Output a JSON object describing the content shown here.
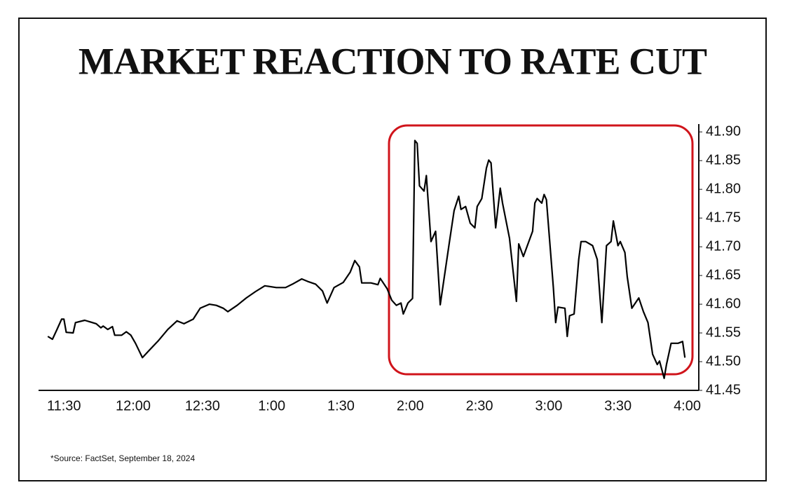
{
  "chart_data": {
    "type": "line",
    "title": "MARKET REACTION TO RATE CUT",
    "source": "*Source: FactSet, September 18, 2024",
    "x": [
      683,
      685,
      687,
      689,
      690,
      691,
      694,
      695,
      699,
      704,
      706,
      707,
      709,
      711,
      712,
      715,
      717,
      719,
      721,
      724,
      727,
      731,
      735,
      739,
      742,
      746,
      749,
      753,
      756,
      759,
      761,
      765,
      769,
      773,
      777,
      782,
      786,
      789,
      793,
      796,
      799,
      802,
      804,
      807,
      811,
      814,
      816,
      818,
      819,
      823,
      826,
      827,
      830,
      832,
      834,
      836,
      837,
      839,
      841,
      842,
      843,
      844,
      846,
      847,
      849,
      851,
      853,
      855,
      857,
      859,
      861,
      862,
      864,
      866,
      868,
      869,
      871,
      873,
      874,
      875,
      877,
      879,
      880,
      883,
      886,
      887,
      889,
      891,
      893,
      894,
      895,
      897,
      898,
      899,
      902,
      903,
      904,
      907,
      908,
      909,
      911,
      913,
      914,
      916,
      919,
      921,
      923,
      925,
      927,
      928,
      930,
      931,
      933,
      934,
      936,
      939,
      941,
      943,
      945,
      947,
      948,
      950,
      951,
      953,
      956,
      958,
      959
    ],
    "values": [
      41.544,
      41.539,
      41.556,
      41.574,
      41.574,
      41.551,
      41.55,
      41.568,
      41.572,
      41.566,
      41.559,
      41.562,
      41.556,
      41.561,
      41.546,
      41.546,
      41.552,
      41.546,
      41.532,
      41.507,
      41.52,
      41.537,
      41.556,
      41.571,
      41.566,
      41.574,
      41.593,
      41.6,
      41.598,
      41.593,
      41.587,
      41.598,
      41.611,
      41.622,
      41.632,
      41.629,
      41.629,
      41.635,
      41.644,
      41.639,
      41.635,
      41.623,
      41.602,
      41.629,
      41.638,
      41.656,
      41.676,
      41.665,
      41.637,
      41.637,
      41.634,
      41.645,
      41.627,
      41.607,
      41.598,
      41.602,
      41.583,
      41.602,
      41.61,
      41.885,
      41.88,
      41.806,
      41.797,
      41.824,
      41.709,
      41.727,
      41.599,
      41.654,
      41.709,
      41.763,
      41.788,
      41.765,
      41.77,
      41.741,
      41.733,
      41.77,
      41.784,
      41.837,
      41.851,
      41.846,
      41.733,
      41.802,
      41.776,
      41.715,
      41.605,
      41.705,
      41.683,
      41.705,
      41.727,
      41.776,
      41.784,
      41.776,
      41.791,
      41.782,
      41.629,
      41.568,
      41.595,
      41.593,
      41.544,
      41.58,
      41.583,
      41.678,
      41.709,
      41.709,
      41.702,
      41.678,
      41.568,
      41.702,
      41.709,
      41.745,
      41.702,
      41.709,
      41.69,
      41.648,
      41.593,
      41.611,
      41.587,
      41.568,
      41.513,
      41.495,
      41.501,
      41.471,
      41.495,
      41.532,
      41.532,
      41.535,
      41.507
    ],
    "color": "#000000",
    "xlim": [
      679,
      965
    ],
    "xticks": [
      {
        "value": 690,
        "label": "11:30"
      },
      {
        "value": 720,
        "label": "12:00"
      },
      {
        "value": 750,
        "label": "12:30"
      },
      {
        "value": 780,
        "label": "1:00"
      },
      {
        "value": 810,
        "label": "1:30"
      },
      {
        "value": 840,
        "label": "2:00"
      },
      {
        "value": 870,
        "label": "2:30"
      },
      {
        "value": 900,
        "label": "3:00"
      },
      {
        "value": 930,
        "label": "3:30"
      },
      {
        "value": 960,
        "label": "4:00"
      }
    ],
    "ylim": [
      41.45,
      41.91
    ],
    "yticks": [
      {
        "value": 41.9,
        "label": "41.90"
      },
      41.85,
      {
        "value": 41.8,
        "label": "41.80"
      },
      41.75,
      {
        "value": 41.7,
        "label": "41.70"
      },
      41.65,
      {
        "value": 41.6,
        "label": "41.60"
      },
      41.55,
      {
        "value": 41.5,
        "label": "41.50"
      },
      41.45
    ]
  }
}
